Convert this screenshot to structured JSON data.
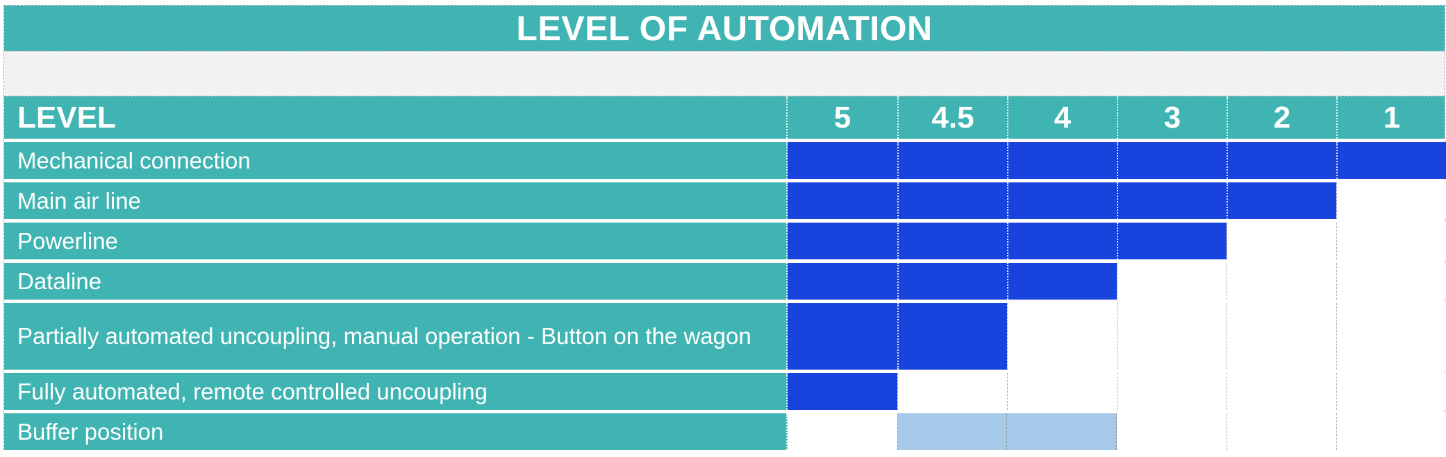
{
  "title": "LEVEL OF AUTOMATION",
  "header": {
    "label": "LEVEL",
    "levels": [
      "5",
      "4.5",
      "4",
      "3",
      "2",
      "1"
    ]
  },
  "rows": [
    {
      "label": "Mechanical connection",
      "cells": [
        "blue",
        "blue",
        "blue",
        "blue",
        "blue",
        "blue"
      ]
    },
    {
      "label": "Main air line",
      "cells": [
        "blue",
        "blue",
        "blue",
        "blue",
        "blue",
        "white"
      ]
    },
    {
      "label": "Powerline",
      "cells": [
        "blue",
        "blue",
        "blue",
        "blue",
        "white",
        "white"
      ]
    },
    {
      "label": "Dataline",
      "cells": [
        "blue",
        "blue",
        "blue",
        "white",
        "white",
        "white"
      ]
    },
    {
      "label": "Partially automated uncoupling, manual operation - Button on the wagon",
      "cells": [
        "blue",
        "blue",
        "white",
        "white",
        "white",
        "white"
      ]
    },
    {
      "label": "Fully automated, remote controlled uncoupling",
      "cells": [
        "blue",
        "white",
        "white",
        "white",
        "white",
        "white"
      ]
    },
    {
      "label": "Buffer position",
      "cells": [
        "white",
        "lightblue",
        "lightblue",
        "white",
        "white",
        "white"
      ]
    }
  ],
  "colors": {
    "teal": "#40B4B2",
    "blue": "#1843DC",
    "light_blue": "#A6C9EA",
    "band_gray": "#F2F2F2"
  },
  "chart_data": {
    "type": "table",
    "title": "LEVEL OF AUTOMATION",
    "columns": [
      "5",
      "4.5",
      "4",
      "3",
      "2",
      "1"
    ],
    "legend_position": "none",
    "rows": [
      {
        "label": "Mechanical connection",
        "levels": [
          "5",
          "4.5",
          "4",
          "3",
          "2",
          "1"
        ],
        "fill": "blue"
      },
      {
        "label": "Main air line",
        "levels": [
          "5",
          "4.5",
          "4",
          "3",
          "2"
        ],
        "fill": "blue"
      },
      {
        "label": "Powerline",
        "levels": [
          "5",
          "4.5",
          "4",
          "3"
        ],
        "fill": "blue"
      },
      {
        "label": "Dataline",
        "levels": [
          "5",
          "4.5",
          "4"
        ],
        "fill": "blue"
      },
      {
        "label": "Partially automated uncoupling, manual operation - Button on the wagon",
        "levels": [
          "5",
          "4.5"
        ],
        "fill": "blue"
      },
      {
        "label": "Fully automated, remote controlled uncoupling",
        "levels": [
          "5"
        ],
        "fill": "blue"
      },
      {
        "label": "Buffer position",
        "levels": [
          "4.5",
          "4"
        ],
        "fill": "light-blue"
      }
    ]
  }
}
